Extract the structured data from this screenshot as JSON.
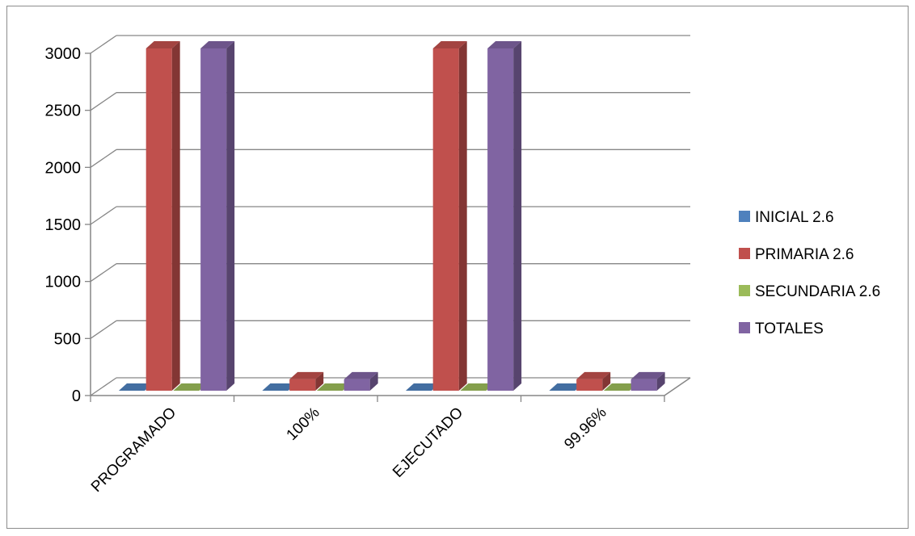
{
  "chart_data": {
    "type": "bar",
    "categories": [
      "PROGRAMADO",
      "100%",
      "EJECUTADO",
      "99.96%"
    ],
    "series": [
      {
        "name": "INICIAL 2.6",
        "color": "#4f81bd",
        "values": [
          0,
          0,
          0,
          0
        ]
      },
      {
        "name": "PRIMARIA 2.6",
        "color": "#c0504d",
        "values": [
          3000,
          100,
          3000,
          100
        ]
      },
      {
        "name": "SECUNDARIA 2.6",
        "color": "#9bbb59",
        "values": [
          0,
          0,
          0,
          0
        ]
      },
      {
        "name": "TOTALES",
        "color": "#8064a2",
        "values": [
          3000,
          100,
          3000,
          100
        ]
      }
    ],
    "yticks": [
      "0",
      "500",
      "1000",
      "1500",
      "2000",
      "2500",
      "3000"
    ],
    "ylim": [
      0,
      3000
    ],
    "grid": true,
    "legend_position": "right",
    "three_d": true
  }
}
